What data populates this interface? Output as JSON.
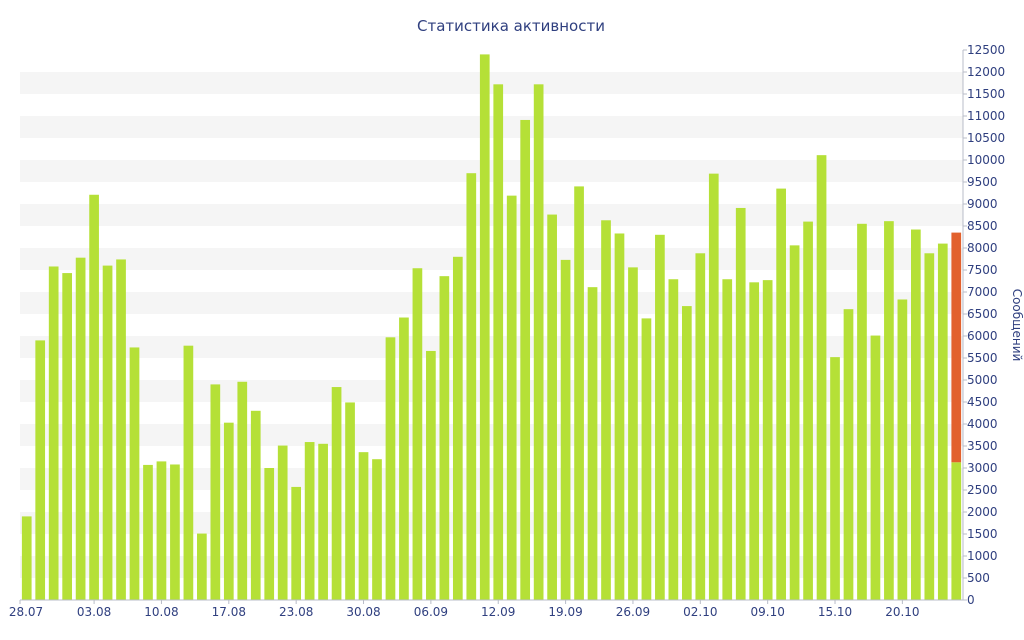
{
  "chart_data": {
    "type": "bar",
    "title": "Статистика активности",
    "ylabel": "Сообщений",
    "xlabel": "",
    "ylim": [
      0,
      12500
    ],
    "y_ticks": [
      0,
      500,
      1000,
      1500,
      2000,
      2500,
      3000,
      3500,
      4000,
      4500,
      5000,
      5500,
      6000,
      6500,
      7000,
      7500,
      8000,
      8500,
      9000,
      9500,
      10000,
      10500,
      11000,
      11500,
      12000,
      12500
    ],
    "x_tick_labels": [
      "28.07",
      "03.08",
      "10.08",
      "17.08",
      "23.08",
      "30.08",
      "06.09",
      "12.09",
      "19.09",
      "26.09",
      "02.10",
      "09.10",
      "15.10",
      "20.10"
    ],
    "x_tick_indices": [
      0,
      5,
      10,
      15,
      20,
      25,
      30,
      35,
      40,
      45,
      50,
      55,
      60,
      65
    ],
    "grid": true,
    "colors": {
      "bar": "#b5e037",
      "highlight": "#e2612d",
      "stripe": "#f5f5f5",
      "text": "#2f3f7f"
    },
    "series": [
      {
        "values": [
          1900,
          5900,
          7580,
          7430,
          7780,
          9210,
          7600,
          7740,
          5740,
          3070,
          3150,
          3080,
          5780,
          1510,
          4900,
          4030,
          4960,
          4300,
          3000,
          3510,
          2570,
          3590,
          3550,
          4840,
          4490,
          3360,
          3200,
          5970,
          6420,
          7540,
          5660,
          7360,
          7800,
          9700,
          12400,
          11720,
          9190,
          10910,
          11720,
          8760,
          7730,
          9400,
          7110,
          8630,
          8330,
          7560,
          6400,
          8300,
          7290,
          6680,
          7880,
          9690,
          7290,
          8910,
          7220,
          7270,
          9350,
          8060,
          8600,
          10110,
          5520,
          6610,
          8550,
          6010,
          8610,
          6830,
          8420,
          7880,
          8100,
          3130
        ]
      },
      {
        "values": [
          0,
          0,
          0,
          0,
          0,
          0,
          0,
          0,
          0,
          0,
          0,
          0,
          0,
          0,
          0,
          0,
          0,
          0,
          0,
          0,
          0,
          0,
          0,
          0,
          0,
          0,
          0,
          0,
          0,
          0,
          0,
          0,
          0,
          0,
          0,
          0,
          0,
          0,
          0,
          0,
          0,
          0,
          0,
          0,
          0,
          0,
          0,
          0,
          0,
          0,
          0,
          0,
          0,
          0,
          0,
          0,
          0,
          0,
          0,
          0,
          0,
          0,
          0,
          0,
          0,
          0,
          0,
          0,
          0,
          5220
        ]
      }
    ]
  }
}
